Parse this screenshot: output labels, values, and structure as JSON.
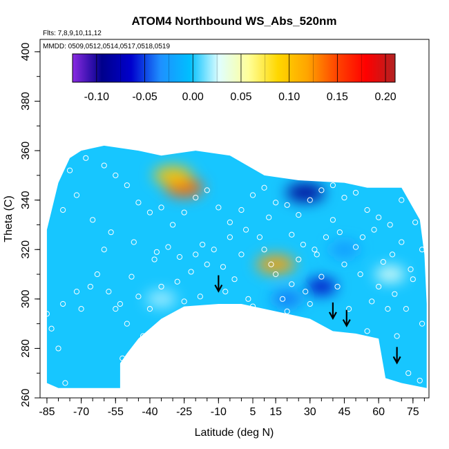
{
  "chart_data": {
    "type": "heatmap",
    "title": "ATOM4 Northbound WS_Abs_520nm",
    "flights_note": "Flts: 7,8,9,10,11,12",
    "dates_note": "MMDD: 0509,0512,0514,0517,0518,0519",
    "xlabel": "Latitude (deg N)",
    "ylabel": "Theta (C)",
    "xlim": [
      -88,
      82
    ],
    "ylim": [
      260,
      405
    ],
    "x_ticks": [
      "-85",
      "-70",
      "-55",
      "-40",
      "-25",
      "-10",
      "5",
      "15",
      "30",
      "45",
      "60",
      "75"
    ],
    "y_ticks": [
      "260",
      "280",
      "300",
      "320",
      "340",
      "360",
      "380",
      "400"
    ],
    "colorbar": {
      "range": [
        -0.125,
        0.21
      ],
      "ticks": [
        "-0.10",
        "-0.05",
        "0.00",
        "0.05",
        "0.10",
        "0.15",
        "0.20"
      ],
      "colors": [
        "#8a2be2",
        "#00008b",
        "#0000cd",
        "#1e90ff",
        "#00bfff",
        "#e0ffff",
        "#ffff99",
        "#ffd700",
        "#ffa500",
        "#ff4500",
        "#ff0000",
        "#b22222"
      ]
    },
    "background_value": 0.0,
    "hotspots": [
      {
        "lat": 15,
        "theta": 314,
        "value": 0.12
      },
      {
        "lat": -25,
        "theta": 345,
        "value": 0.14
      },
      {
        "lat": -30,
        "theta": 350,
        "value": 0.1
      },
      {
        "lat": 28,
        "theta": 343,
        "value": -0.09
      },
      {
        "lat": 35,
        "theta": 305,
        "value": -0.07
      },
      {
        "lat": 20,
        "theta": 300,
        "value": -0.04
      },
      {
        "lat": 45,
        "theta": 320,
        "value": -0.03
      },
      {
        "lat": 65,
        "theta": 310,
        "value": 0.03
      },
      {
        "lat": -35,
        "theta": 300,
        "value": 0.02
      }
    ],
    "upper_boundary": [
      [
        -85,
        328
      ],
      [
        -80,
        347
      ],
      [
        -75,
        357
      ],
      [
        -70,
        360
      ],
      [
        -60,
        362
      ],
      [
        -45,
        360
      ],
      [
        -35,
        358
      ],
      [
        -20,
        360
      ],
      [
        -5,
        358
      ],
      [
        10,
        350
      ],
      [
        25,
        348
      ],
      [
        45,
        347
      ],
      [
        55,
        345
      ],
      [
        70,
        345
      ],
      [
        78,
        332
      ],
      [
        80,
        318
      ],
      [
        81,
        298
      ]
    ],
    "lower_boundary": [
      [
        81,
        264
      ],
      [
        70,
        266
      ],
      [
        63,
        268
      ],
      [
        60,
        284
      ],
      [
        50,
        286
      ],
      [
        40,
        287
      ],
      [
        30,
        292
      ],
      [
        20,
        294
      ],
      [
        10,
        296
      ],
      [
        0,
        298
      ],
      [
        -10,
        298
      ],
      [
        -25,
        297
      ],
      [
        -35,
        292
      ],
      [
        -45,
        284
      ],
      [
        -50,
        278
      ],
      [
        -53,
        274
      ],
      [
        -53,
        264
      ],
      [
        -80,
        264
      ],
      [
        -85,
        266
      ]
    ],
    "observation_points": [
      [
        -85,
        294
      ],
      [
        -83,
        288
      ],
      [
        -80,
        280
      ],
      [
        -78,
        298
      ],
      [
        -77,
        266
      ],
      [
        -72,
        303
      ],
      [
        -70,
        296
      ],
      [
        -66,
        305
      ],
      [
        -63,
        310
      ],
      [
        -60,
        320
      ],
      [
        -58,
        303
      ],
      [
        -55,
        296
      ],
      [
        -53,
        298
      ],
      [
        -52,
        276
      ],
      [
        -50,
        290
      ],
      [
        -48,
        309
      ],
      [
        -45,
        301
      ],
      [
        -43,
        285
      ],
      [
        -40,
        296
      ],
      [
        -38,
        316
      ],
      [
        -35,
        305
      ],
      [
        -32,
        321
      ],
      [
        -30,
        290
      ],
      [
        -28,
        307
      ],
      [
        -25,
        299
      ],
      [
        -22,
        311
      ],
      [
        -20,
        318
      ],
      [
        -18,
        301
      ],
      [
        -15,
        314
      ],
      [
        -12,
        320
      ],
      [
        -8,
        313
      ],
      [
        -5,
        325
      ],
      [
        -3,
        308
      ],
      [
        0,
        318
      ],
      [
        3,
        300
      ],
      [
        5,
        297
      ],
      [
        8,
        325
      ],
      [
        10,
        320
      ],
      [
        13,
        314
      ],
      [
        15,
        310
      ],
      [
        18,
        300
      ],
      [
        20,
        295
      ],
      [
        22,
        306
      ],
      [
        25,
        316
      ],
      [
        28,
        303
      ],
      [
        30,
        298
      ],
      [
        32,
        320
      ],
      [
        35,
        309
      ],
      [
        37,
        325
      ],
      [
        40,
        332
      ],
      [
        42,
        305
      ],
      [
        45,
        314
      ],
      [
        47,
        296
      ],
      [
        50,
        321
      ],
      [
        52,
        310
      ],
      [
        55,
        287
      ],
      [
        57,
        299
      ],
      [
        60,
        305
      ],
      [
        62,
        315
      ],
      [
        64,
        296
      ],
      [
        66,
        318
      ],
      [
        68,
        285
      ],
      [
        70,
        323
      ],
      [
        72,
        296
      ],
      [
        73,
        270
      ],
      [
        75,
        308
      ],
      [
        76,
        331
      ],
      [
        78,
        267
      ],
      [
        79,
        290
      ],
      [
        -75,
        352
      ],
      [
        -68,
        357
      ],
      [
        -60,
        354
      ],
      [
        -55,
        350
      ],
      [
        -50,
        346
      ],
      [
        -45,
        339
      ],
      [
        -40,
        335
      ],
      [
        -35,
        337
      ],
      [
        -30,
        330
      ],
      [
        -25,
        335
      ],
      [
        -20,
        341
      ],
      [
        -15,
        344
      ],
      [
        -10,
        337
      ],
      [
        -5,
        331
      ],
      [
        0,
        336
      ],
      [
        5,
        342
      ],
      [
        10,
        345
      ],
      [
        15,
        339
      ],
      [
        20,
        338
      ],
      [
        25,
        334
      ],
      [
        30,
        340
      ],
      [
        35,
        344
      ],
      [
        40,
        346
      ],
      [
        45,
        341
      ],
      [
        50,
        343
      ],
      [
        55,
        336
      ],
      [
        60,
        333
      ],
      [
        65,
        330
      ],
      [
        70,
        340
      ],
      [
        72,
        346
      ],
      [
        74,
        350
      ],
      [
        -72,
        342
      ],
      [
        -78,
        336
      ],
      [
        -65,
        332
      ],
      [
        -57,
        327
      ],
      [
        -47,
        323
      ],
      [
        -37,
        319
      ],
      [
        -27,
        317
      ],
      [
        -17,
        322
      ],
      [
        -7,
        303
      ],
      [
        2,
        328
      ],
      [
        12,
        333
      ],
      [
        22,
        326
      ],
      [
        27,
        322
      ],
      [
        33,
        318
      ],
      [
        43,
        327
      ],
      [
        53,
        325
      ],
      [
        58,
        328
      ],
      [
        67,
        302
      ],
      [
        74,
        312
      ],
      [
        79,
        320
      ]
    ],
    "arrows": [
      {
        "lat": -10,
        "theta": 304
      },
      {
        "lat": 40,
        "theta": 293
      },
      {
        "lat": 46,
        "theta": 290
      },
      {
        "lat": 68,
        "theta": 275
      }
    ]
  }
}
